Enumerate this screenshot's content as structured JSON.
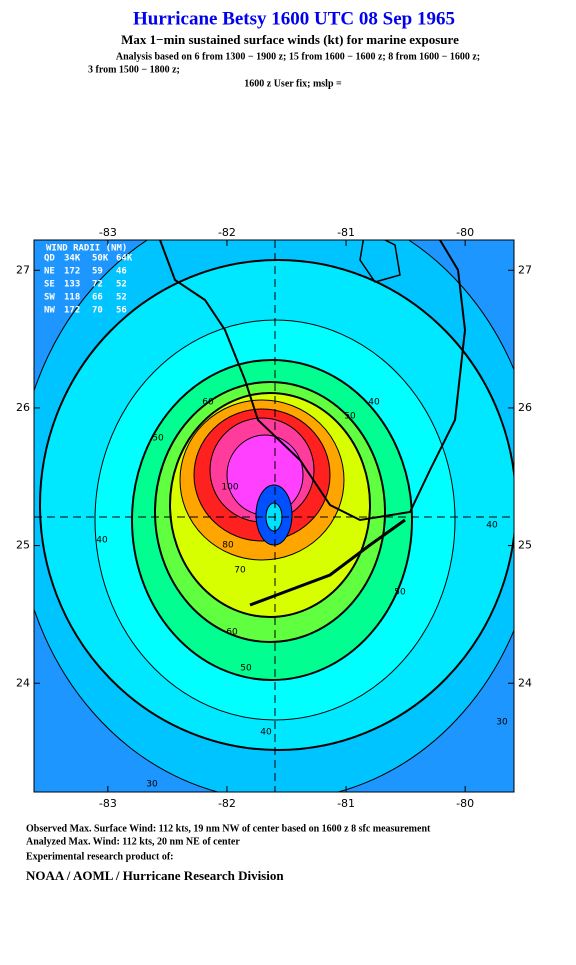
{
  "header": {
    "title": "Hurricane Betsy 1600 UTC 08 Sep 1965",
    "subtitle": "Max 1−min sustained surface winds (kt) for marine exposure",
    "analysis_lines": [
      "Analysis based on  6 from 1300 − 1900 z;  15 from 1600 − 1600 z;  8 from 1600 − 1600 z;",
      "3 from 1500 − 1800 z;"
    ],
    "fix": "1600 z User fix; mslp ="
  },
  "map": {
    "xlim": [
      -83.62,
      -79.59
    ],
    "ylim": [
      23.21,
      27.22
    ],
    "xticks": [
      -83,
      -82,
      -81,
      -80
    ],
    "yticks": [
      27,
      26,
      25,
      24
    ],
    "contour_labels": [
      "30",
      "30",
      "40",
      "40",
      "40",
      "40",
      "50",
      "50",
      "50",
      "50",
      "60",
      "60",
      "70",
      "80",
      "100"
    ]
  },
  "wind_radii": {
    "title": "WIND RADII (NM)",
    "header": [
      "QD",
      "34K",
      "50K",
      "64K"
    ],
    "rows": [
      [
        "NE",
        "172",
        "59",
        "46"
      ],
      [
        "SE",
        "133",
        "72",
        "52"
      ],
      [
        "SW",
        "118",
        "66",
        "52"
      ],
      [
        "NW",
        "172",
        "70",
        "56"
      ]
    ]
  },
  "footer": {
    "lines": [
      "Observed Max. Surface Wind: 112 kts, 19 nm NW of center based on 1600 z 8 sfc measurement",
      "Analyzed Max. Wind: 112 kts, 20 nm NE of center",
      "Experimental research product of:"
    ],
    "org": "NOAA / AOML / Hurricane Research Division"
  }
}
